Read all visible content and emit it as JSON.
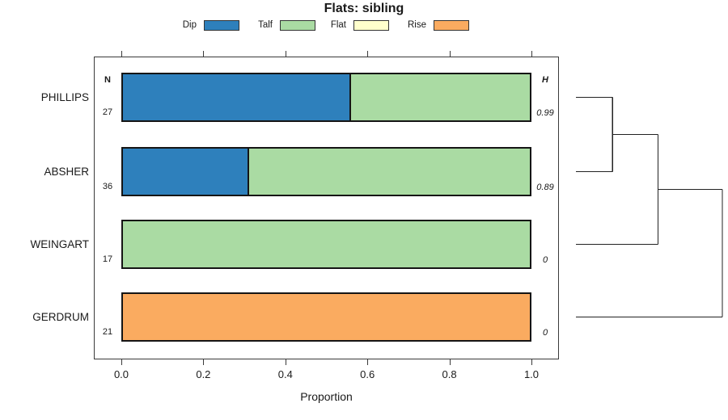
{
  "title": "Flats: sibling",
  "xlabel": "Proportion",
  "x_ticks": [
    "0.0",
    "0.2",
    "0.4",
    "0.6",
    "0.8",
    "1.0"
  ],
  "columns": {
    "n_header": "N",
    "h_header": "H"
  },
  "colors": {
    "dip": "#2E80BC",
    "talf": "#AADBA3",
    "flat": "#FFFFCC",
    "rise": "#FAAB60"
  },
  "legend": [
    {
      "label": "Dip",
      "color": "dip"
    },
    {
      "label": "Talf",
      "color": "talf"
    },
    {
      "label": "Flat",
      "color": "flat"
    },
    {
      "label": "Rise",
      "color": "rise"
    }
  ],
  "chart_data": {
    "type": "bar",
    "stacked": true,
    "orientation": "horizontal",
    "title": "Flats: sibling",
    "xlabel": "Proportion",
    "xlim": [
      0,
      1
    ],
    "x_tick_values": [
      0.0,
      0.2,
      0.4,
      0.6,
      0.8,
      1.0
    ],
    "grid": false,
    "legend_position": "top",
    "categories": [
      "PHILLIPS",
      "ABSHER",
      "WEINGART",
      "GERDRUM"
    ],
    "n_values": [
      27,
      36,
      17,
      21
    ],
    "h_values": [
      "0.99",
      "0.89",
      "0",
      "0"
    ],
    "series": [
      {
        "name": "Dip",
        "color": "dip",
        "values": [
          0.556,
          0.306,
          0,
          0
        ]
      },
      {
        "name": "Talf",
        "color": "talf",
        "values": [
          0.444,
          0.694,
          1,
          0
        ]
      },
      {
        "name": "Flat",
        "color": "flat",
        "values": [
          0,
          0,
          0,
          0
        ]
      },
      {
        "name": "Rise",
        "color": "rise",
        "values": [
          0,
          0,
          0,
          1
        ]
      }
    ],
    "dendrogram": {
      "orientation": "right",
      "leaves": [
        "PHILLIPS",
        "ABSHER",
        "WEINGART",
        "GERDRUM"
      ],
      "merges": [
        {
          "id": "m0",
          "children": [
            "PHILLIPS",
            "ABSHER"
          ],
          "height": 0.25
        },
        {
          "id": "m1",
          "children": [
            "m0",
            "WEINGART"
          ],
          "height": 0.56
        },
        {
          "id": "m2",
          "children": [
            "m1",
            "GERDRUM"
          ],
          "height": 1.0
        }
      ]
    }
  }
}
